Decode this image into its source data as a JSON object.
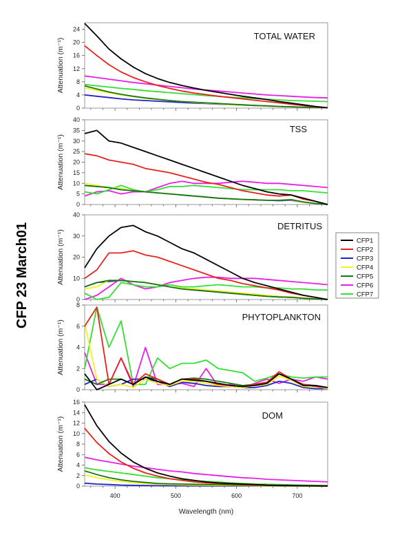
{
  "figure_title": "CFP 23 March01",
  "chart_data": [
    {
      "type": "line",
      "title": "TOTAL WATER",
      "ylabel": "Attenuation (m⁻¹)",
      "xlabel": "",
      "ylim": [
        0,
        26
      ],
      "xlim": [
        350,
        750
      ],
      "yticks": [
        0,
        4,
        8,
        12,
        16,
        20,
        24
      ],
      "x": [
        350,
        370,
        390,
        410,
        430,
        450,
        470,
        490,
        510,
        530,
        550,
        570,
        590,
        610,
        630,
        650,
        670,
        690,
        710,
        730,
        750
      ],
      "series": [
        {
          "name": "CFP1",
          "values": [
            25.8,
            22,
            18,
            15,
            12.5,
            10.5,
            9,
            7.8,
            6.9,
            6.1,
            5.4,
            4.8,
            4.2,
            3.6,
            3.1,
            2.6,
            2.0,
            1.5,
            1.0,
            0.5,
            0.1
          ]
        },
        {
          "name": "CFP2",
          "values": [
            19,
            16,
            13.2,
            11,
            9.3,
            8,
            6.9,
            6,
            5.2,
            4.6,
            4.1,
            3.6,
            3.2,
            2.8,
            2.4,
            2.0,
            1.6,
            1.2,
            0.8,
            0.4,
            0.1
          ]
        },
        {
          "name": "CFP3",
          "values": [
            4.0,
            3.6,
            3.2,
            2.8,
            2.5,
            2.3,
            2.1,
            1.9,
            1.7,
            1.5,
            1.4,
            1.2,
            1.1,
            0.9,
            0.8,
            0.6,
            0.5,
            0.4,
            0.3,
            0.2,
            0.1
          ]
        },
        {
          "name": "CFP4",
          "values": [
            6.2,
            5.4,
            4.7,
            4.0,
            3.5,
            3.0,
            2.6,
            2.3,
            2.0,
            1.7,
            1.5,
            1.3,
            1.1,
            0.9,
            0.8,
            0.6,
            0.5,
            0.4,
            0.3,
            0.2,
            0.1
          ]
        },
        {
          "name": "CFP5",
          "values": [
            6.8,
            5.8,
            4.9,
            4.2,
            3.6,
            3.1,
            2.7,
            2.3,
            2.0,
            1.8,
            1.6,
            1.4,
            1.2,
            1.0,
            0.8,
            0.7,
            0.5,
            0.4,
            0.3,
            0.2,
            0.1
          ]
        },
        {
          "name": "CFP6",
          "values": [
            9.8,
            9.3,
            8.8,
            8.3,
            7.8,
            7.4,
            7.0,
            6.6,
            6.2,
            5.8,
            5.5,
            5.2,
            4.9,
            4.6,
            4.3,
            4.0,
            3.8,
            3.6,
            3.4,
            3.2,
            3.1
          ]
        },
        {
          "name": "CFP7",
          "values": [
            7.2,
            6.8,
            6.4,
            6.0,
            5.7,
            5.3,
            5.0,
            4.7,
            4.4,
            4.1,
            3.8,
            3.6,
            3.3,
            3.1,
            2.9,
            2.7,
            2.5,
            2.3,
            2.2,
            2.1,
            2.0
          ]
        }
      ]
    },
    {
      "type": "line",
      "title": "TSS",
      "ylabel": "Attenuation (m⁻¹)",
      "xlabel": "",
      "ylim": [
        0,
        40
      ],
      "xlim": [
        350,
        750
      ],
      "yticks": [
        0,
        5,
        10,
        15,
        20,
        25,
        30,
        35,
        40
      ],
      "x": [
        350,
        370,
        390,
        410,
        430,
        450,
        470,
        490,
        510,
        530,
        550,
        570,
        590,
        610,
        630,
        650,
        670,
        690,
        710,
        730,
        750
      ],
      "series": [
        {
          "name": "CFP1",
          "values": [
            33.5,
            35,
            30,
            29,
            27,
            25,
            23,
            21,
            19,
            17,
            15,
            13,
            11,
            9,
            7.5,
            6,
            5,
            4.5,
            3,
            1.5,
            0
          ]
        },
        {
          "name": "CFP2",
          "values": [
            24,
            23,
            21,
            20,
            19,
            17,
            16,
            15,
            13.5,
            12,
            10.5,
            9.5,
            8,
            6.5,
            5.5,
            4.5,
            4,
            4.5,
            2.5,
            1.5,
            0
          ]
        },
        {
          "name": "CFP3",
          "values": [
            9,
            8.5,
            8,
            7,
            6.5,
            6,
            5.5,
            5,
            4.5,
            4,
            3.5,
            3,
            2.7,
            2.4,
            2.2,
            2,
            1.8,
            2,
            1,
            0.5,
            0
          ]
        },
        {
          "name": "CFP4",
          "values": [
            10,
            9,
            8,
            7.5,
            6.5,
            6,
            5.5,
            5,
            4.5,
            4,
            3.5,
            3,
            2.7,
            2.4,
            2.2,
            2,
            2,
            2.2,
            1,
            0.5,
            0
          ]
        },
        {
          "name": "CFP5",
          "values": [
            9,
            8.5,
            8,
            7,
            6.5,
            6,
            5.5,
            5,
            4.5,
            4,
            3.5,
            3,
            2.7,
            2.4,
            2.2,
            2,
            2,
            2.3,
            1.2,
            0.5,
            0
          ]
        },
        {
          "name": "CFP6",
          "values": [
            4,
            6,
            6.5,
            5,
            6,
            6,
            8,
            10,
            11,
            10,
            10,
            10,
            10.5,
            11,
            10.5,
            10,
            10,
            9.5,
            9,
            8.5,
            8
          ]
        },
        {
          "name": "CFP7",
          "values": [
            6,
            5,
            7,
            9,
            7,
            6,
            7,
            8.5,
            8.5,
            9,
            8.5,
            8,
            7.5,
            7,
            7,
            7,
            7,
            6.5,
            6.5,
            6,
            5.5
          ]
        }
      ]
    },
    {
      "type": "line",
      "title": "DETRITUS",
      "ylabel": "Attenuation (m⁻¹)",
      "xlabel": "",
      "ylim": [
        0,
        40
      ],
      "xlim": [
        350,
        750
      ],
      "yticks": [
        0,
        10,
        20,
        30,
        40
      ],
      "x": [
        350,
        370,
        390,
        410,
        430,
        450,
        470,
        490,
        510,
        530,
        550,
        570,
        590,
        610,
        630,
        650,
        670,
        690,
        710,
        730,
        750
      ],
      "series": [
        {
          "name": "CFP1",
          "values": [
            15,
            24,
            30,
            34,
            35,
            32,
            30,
            27,
            24,
            22,
            19,
            16,
            13,
            10,
            8,
            6.5,
            5,
            3.5,
            2,
            1,
            0
          ]
        },
        {
          "name": "CFP2",
          "values": [
            10,
            14,
            22,
            22,
            23,
            21,
            20,
            18,
            16,
            14,
            12,
            10,
            9,
            7.5,
            6.5,
            5.5,
            4.5,
            3,
            2,
            1,
            0
          ]
        },
        {
          "name": "CFP3",
          "values": [
            6,
            8,
            8.5,
            9,
            8.5,
            8,
            7,
            6,
            5,
            4.5,
            4,
            3.5,
            3,
            2.5,
            2,
            1.5,
            1.2,
            1,
            0.6,
            0.3,
            0
          ]
        },
        {
          "name": "CFP4",
          "values": [
            5,
            6,
            9,
            9,
            8.5,
            8,
            7,
            6,
            5.5,
            5,
            4.5,
            4,
            3.5,
            3,
            2.5,
            2,
            1.5,
            1.2,
            0.8,
            0.4,
            0
          ]
        },
        {
          "name": "CFP5",
          "values": [
            6,
            8,
            9,
            9,
            8.5,
            8,
            7,
            6,
            5,
            4.5,
            4,
            3.5,
            3,
            2.5,
            2,
            1.5,
            1.2,
            1,
            0.6,
            0.3,
            0
          ]
        },
        {
          "name": "CFP6",
          "values": [
            0,
            2,
            6,
            10,
            7,
            5,
            6,
            8,
            9,
            10,
            10.5,
            10.5,
            10,
            10,
            10,
            9.5,
            9,
            8.5,
            8,
            7.5,
            7
          ]
        },
        {
          "name": "CFP7",
          "values": [
            3,
            0,
            1,
            8,
            7,
            6,
            6,
            7,
            6,
            6,
            6.5,
            7,
            6.5,
            6,
            6,
            5.5,
            5.5,
            5,
            5,
            4.5,
            4.5
          ]
        }
      ]
    },
    {
      "type": "line",
      "title": "PHYTOPLANKTON",
      "ylabel": "Attenuation (m⁻¹)",
      "xlabel": "",
      "ylim": [
        0,
        8
      ],
      "xlim": [
        350,
        750
      ],
      "yticks": [
        0,
        2,
        4,
        6,
        8
      ],
      "x": [
        350,
        370,
        390,
        410,
        430,
        450,
        470,
        490,
        510,
        530,
        550,
        570,
        590,
        610,
        630,
        650,
        670,
        690,
        710,
        730,
        750
      ],
      "series": [
        {
          "name": "CFP1",
          "values": [
            1.5,
            0,
            0.5,
            1,
            0.5,
            1.2,
            0.8,
            0.5,
            1,
            0.9,
            0.8,
            0.6,
            0.4,
            0.3,
            0.4,
            0.6,
            1.5,
            1,
            0.4,
            0.4,
            0.2
          ]
        },
        {
          "name": "CFP2",
          "values": [
            6,
            7.8,
            0.5,
            3,
            0.5,
            1.5,
            1,
            0.5,
            1,
            1,
            0.8,
            0.5,
            0.4,
            0.3,
            0.5,
            0.7,
            1.7,
            1,
            0.5,
            0.3,
            0.2
          ]
        },
        {
          "name": "CFP3",
          "values": [
            0.5,
            1,
            0.3,
            0.5,
            1,
            1,
            0.8,
            0.3,
            0.7,
            0.6,
            0.4,
            0.3,
            0.3,
            0.2,
            0.2,
            0.4,
            0.8,
            0.6,
            0.2,
            0.1,
            0.1
          ]
        },
        {
          "name": "CFP4",
          "values": [
            6.3,
            1,
            0.3,
            0.5,
            0.2,
            1,
            0.6,
            0.4,
            0.8,
            0.8,
            0.6,
            0.4,
            0.3,
            0.2,
            0.4,
            0.5,
            1.3,
            0.9,
            0.3,
            0.3,
            0.1
          ]
        },
        {
          "name": "CFP5",
          "values": [
            1,
            0.5,
            1,
            1,
            0.5,
            1.2,
            1,
            0.5,
            1,
            1.1,
            1,
            0.8,
            0.6,
            0.4,
            0.5,
            0.7,
            1.5,
            1,
            0.5,
            0.4,
            0.2
          ]
        },
        {
          "name": "CFP6",
          "values": [
            3.5,
            0.5,
            0.5,
            3,
            0.3,
            4,
            0.5,
            0.5,
            0.6,
            0.3,
            2,
            0.3,
            0.5,
            0.2,
            0.6,
            1,
            0.6,
            1,
            0.8,
            1.2,
            1
          ]
        },
        {
          "name": "CFP7",
          "values": [
            2,
            7.8,
            4,
            6.5,
            0.5,
            0.5,
            3,
            2,
            2.5,
            2.5,
            2.8,
            2,
            1.8,
            1.6,
            0.8,
            1.1,
            1.5,
            1.2,
            1.1,
            1.2,
            1.2
          ]
        }
      ]
    },
    {
      "type": "line",
      "title": "DOM",
      "ylabel": "Attenuation (m⁻¹)",
      "xlabel": "Wavelength (nm)",
      "ylim": [
        0,
        16
      ],
      "xlim": [
        350,
        750
      ],
      "yticks": [
        0,
        2,
        4,
        6,
        8,
        10,
        12,
        14,
        16
      ],
      "xticks": [
        400,
        500,
        600,
        700
      ],
      "x": [
        350,
        370,
        390,
        410,
        430,
        450,
        470,
        490,
        510,
        530,
        550,
        570,
        590,
        610,
        630,
        650,
        670,
        690,
        710,
        730,
        750
      ],
      "series": [
        {
          "name": "CFP1",
          "values": [
            15.5,
            11.5,
            8.5,
            6.3,
            4.6,
            3.4,
            2.5,
            1.9,
            1.4,
            1.1,
            0.8,
            0.6,
            0.5,
            0.4,
            0.3,
            0.2,
            0.15,
            0.1,
            0.08,
            0.05,
            0.03
          ]
        },
        {
          "name": "CFP2",
          "values": [
            11,
            8.3,
            6.2,
            4.6,
            3.4,
            2.5,
            1.9,
            1.4,
            1.1,
            0.8,
            0.6,
            0.5,
            0.4,
            0.3,
            0.2,
            0.15,
            0.1,
            0.08,
            0.05,
            0.03,
            0.02
          ]
        },
        {
          "name": "CFP3",
          "values": [
            0.55,
            0.4,
            0.3,
            0.2,
            0.15,
            0.1,
            0.08,
            0.06,
            0.05,
            0.04,
            0.03,
            0.02,
            0.02,
            0.01,
            0.01,
            0.01,
            0,
            0,
            0,
            0,
            0
          ]
        },
        {
          "name": "CFP4",
          "values": [
            2.1,
            1.6,
            1.2,
            0.9,
            0.7,
            0.5,
            0.4,
            0.3,
            0.25,
            0.2,
            0.15,
            0.12,
            0.1,
            0.08,
            0.06,
            0.05,
            0.04,
            0.03,
            0.02,
            0.02,
            0.01
          ]
        },
        {
          "name": "CFP5",
          "values": [
            2.9,
            2.2,
            1.6,
            1.2,
            0.9,
            0.7,
            0.5,
            0.45,
            0.4,
            0.35,
            0.3,
            0.25,
            0.2,
            0.17,
            0.15,
            0.12,
            0.1,
            0.08,
            0.06,
            0.05,
            0.04
          ]
        },
        {
          "name": "CFP6",
          "values": [
            5.5,
            5.0,
            4.6,
            4.2,
            3.8,
            3.5,
            3.2,
            2.9,
            2.7,
            2.4,
            2.2,
            2.0,
            1.8,
            1.6,
            1.5,
            1.3,
            1.2,
            1.1,
            1.0,
            0.9,
            0.8
          ]
        },
        {
          "name": "CFP7",
          "values": [
            3.5,
            3.1,
            2.8,
            2.5,
            2.2,
            1.9,
            1.6,
            1.4,
            1.2,
            1.0,
            0.9,
            0.8,
            0.6,
            0.5,
            0.4,
            0.35,
            0.3,
            0.25,
            0.2,
            0.15,
            0.1
          ]
        }
      ]
    }
  ],
  "legend": {
    "placement": "right",
    "entries": [
      {
        "name": "CFP1",
        "color": "#000000"
      },
      {
        "name": "CFP2",
        "color": "#e8201a"
      },
      {
        "name": "CFP3",
        "color": "#2020c8"
      },
      {
        "name": "CFP4",
        "color": "#f5f020"
      },
      {
        "name": "CFP5",
        "color": "#137a13"
      },
      {
        "name": "CFP6",
        "color": "#e81ee8"
      },
      {
        "name": "CFP7",
        "color": "#30e030"
      }
    ]
  }
}
